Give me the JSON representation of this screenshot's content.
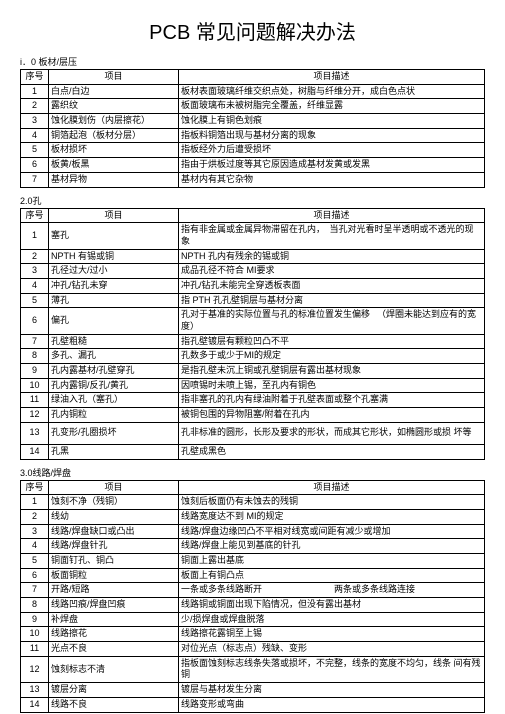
{
  "title": "PCB 常见问题解决办法",
  "headers": {
    "seq": "序号",
    "item": "项目",
    "desc": "项目描述"
  },
  "sections": [
    {
      "label": "i．0 板材/层压",
      "rows": [
        {
          "n": "1",
          "item": "白点/白边",
          "desc": "板材表面玻璃纤维交织点处，树脂与纤维分开，成白色点状"
        },
        {
          "n": "2",
          "item": "露织纹",
          "desc": "板面玻璃布未被树脂完全覆盖，纤维显露"
        },
        {
          "n": "3",
          "item": "蚀化膜划伤（内层擦花）",
          "desc": "蚀化膜上有铜色划痕"
        },
        {
          "n": "4",
          "item": "铜箔起泡（板材分层）",
          "desc": "指板料铜箔出现与基材分离的现象"
        },
        {
          "n": "5",
          "item": "板材损坏",
          "desc": "指板经外力后遭受损坏"
        },
        {
          "n": "6",
          "item": "板黄/板黑",
          "desc": "指由于烘板过度等其它原因造成基材发黄或发黑"
        },
        {
          "n": "7",
          "item": "基材异物",
          "desc": "基材内有其它杂物"
        }
      ]
    },
    {
      "label": "2.0孔",
      "rows": [
        {
          "n": "1",
          "item": "塞孔",
          "desc": "指有非金属或金属异物滞留在孔内，　当孔对光看时呈半透明或不透光的现象",
          "tall": true
        },
        {
          "n": "2",
          "item": "NPTH 有锡或铜",
          "desc": "NPTH 孔内有残余的锡或铜"
        },
        {
          "n": "3",
          "item": "孔径过大/过小",
          "desc": "成品孔径不符合  MI要求"
        },
        {
          "n": "4",
          "item": "冲孔/钻孔未穿",
          "desc": "冲孔/钻孔未能完全穿透板表面"
        },
        {
          "n": "5",
          "item": "薄孔",
          "desc": "指 PTH 孔孔壁铜层与基材分离"
        },
        {
          "n": "6",
          "item": "偏孔",
          "desc": "孔对于基准的实际位置与孔的标准位置发生偏移 　（焊圈未能达到应有的宽度）",
          "tall": true
        },
        {
          "n": "7",
          "item": "孔壁粗糙",
          "desc": "指孔壁镀层有颗粒凹凸不平"
        },
        {
          "n": "8",
          "item": "多孔、漏孔",
          "desc": "孔数多于或少于MI的规定"
        },
        {
          "n": "9",
          "item": "孔内露基材/孔壁穿孔",
          "desc": "是指孔壁未沉上铜或孔壁铜层有露出基材现象"
        },
        {
          "n": "10",
          "item": "孔内露铜/反孔/黄孔",
          "desc": "因喷锡时未喷上锡，至孔内有铜色"
        },
        {
          "n": "11",
          "item": "绿油入孔（塞孔）",
          "desc": "指非塞孔的孔内有绿油附着于孔壁表面或整个孔塞满"
        },
        {
          "n": "12",
          "item": "孔内铜粒",
          "desc": "被铜包围的异物阻塞/附着在孔内"
        },
        {
          "n": "13",
          "item": "孔变形/孔圈损坏",
          "desc": "孔非标准的圆形，长形及要求的形状，而成其它形状，如椭圆形或损  坏等",
          "tall": true
        },
        {
          "n": "14",
          "item": "孔黑",
          "desc": "孔壁成黑色"
        }
      ]
    },
    {
      "label": "3.0线路/焊盘",
      "rows": [
        {
          "n": "1",
          "item": "蚀刻不净（残铜）",
          "desc": "蚀刻后板面仍有未蚀去的残铜"
        },
        {
          "n": "2",
          "item": "线幼",
          "desc": "线路宽度达不到 MI的规定"
        },
        {
          "n": "3",
          "item": "线路/焊盘缺口或凸出",
          "desc": "线路/焊盘边缘凹凸不平相对线宽或间距有减少或增加"
        },
        {
          "n": "4",
          "item": "线路/焊盘针孔",
          "desc": "线路/焊盘上能见到基底的针孔"
        },
        {
          "n": "5",
          "item": "铜面钉孔、铜凸",
          "desc": "铜面上露出基底"
        },
        {
          "n": "6",
          "item": "板面铜粒",
          "desc": "板面上有铜凸点"
        },
        {
          "n": "7",
          "item": "开路/短路",
          "desc": "一条或多条线路断开　　　　　　　　两条或多条线路连接"
        },
        {
          "n": "8",
          "item": "线路凹痕/焊盘凹痕",
          "desc": "线路铜或铜面出现下陷情况，但没有露出基材"
        },
        {
          "n": "9",
          "item": "补焊盘",
          "desc": "少/损焊盘或焊盘脱落"
        },
        {
          "n": "10",
          "item": "线路擦花",
          "desc": "线路擦花露铜至上锡"
        },
        {
          "n": "11",
          "item": "光点不良",
          "desc": "对位光点（标志点）残缺、变形"
        },
        {
          "n": "12",
          "item": "蚀刻标志不清",
          "desc": "指板面蚀刻标志线条失落或损坏，不完整，线条的宽度不均匀，线条  间有残铜",
          "tall": true
        },
        {
          "n": "13",
          "item": "镀层分离",
          "desc": "镀层与基材发生分离"
        },
        {
          "n": "14",
          "item": "线路不良",
          "desc": "线路变形或弯曲"
        }
      ]
    }
  ]
}
